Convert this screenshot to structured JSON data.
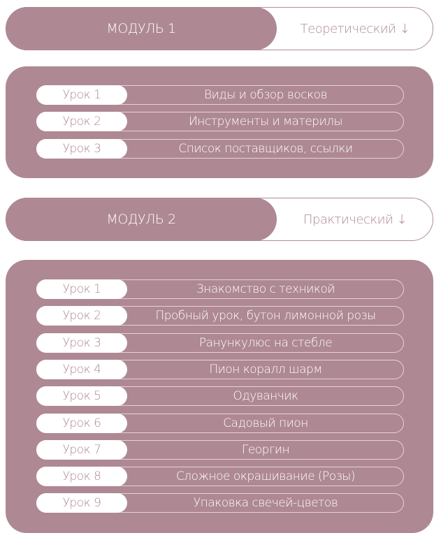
{
  "modules": [
    {
      "label": "МОДУЛЬ 1",
      "type": "Теоретический ↓",
      "lessons": [
        {
          "num": "Урок 1",
          "title": "Виды и обзор восков"
        },
        {
          "num": "Урок 2",
          "title": "Инструменты и материлы"
        },
        {
          "num": "Урок 3",
          "title": "Список поставщиков, ссылки"
        }
      ]
    },
    {
      "label": "МОДУЛЬ 2",
      "type": "Практический ↓",
      "lessons": [
        {
          "num": "Урок 1",
          "title": "Знакомство с техникой"
        },
        {
          "num": "Урок 2",
          "title": "Пробный урок, бутон лимонной розы"
        },
        {
          "num": "Урок 3",
          "title": "Ранункулюс на стебле"
        },
        {
          "num": "Урок 4",
          "title": "Пион коралл шарм"
        },
        {
          "num": "Урок 5",
          "title": "Одуванчик"
        },
        {
          "num": "Урок 6",
          "title": "Садовый пион"
        },
        {
          "num": "Урок 7",
          "title": "Георгин"
        },
        {
          "num": "Урок 8",
          "title": "Сложное окрашивание (Розы)"
        },
        {
          "num": "Урок 9",
          "title": "Упаковка свечей-цветов"
        }
      ]
    }
  ],
  "scroll_top": "^",
  "colors": {
    "accent": "#ae8893",
    "white": "#ffffff"
  }
}
